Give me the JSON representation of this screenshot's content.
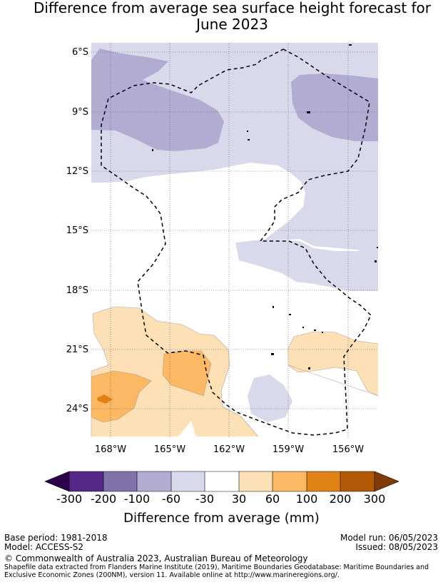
{
  "title": {
    "line1": "Difference from average sea surface height forecast for",
    "line2": "June 2023"
  },
  "map": {
    "lat_labels": [
      "6°S",
      "9°S",
      "12°S",
      "15°S",
      "18°S",
      "21°S",
      "24°S"
    ],
    "lon_labels": [
      "168°W",
      "165°W",
      "162°W",
      "159°W",
      "156°W"
    ],
    "extent": {
      "lon_min": -169.0,
      "lon_max": -154.5,
      "lat_min": -25.4,
      "lat_max": -5.5
    },
    "gridlines": true,
    "boundary_style": "dashed black line (EEZ)"
  },
  "colorbar": {
    "ticks": [
      "-300",
      "-200",
      "-100",
      "-60",
      "-30",
      "30",
      "60",
      "100",
      "200",
      "300"
    ],
    "label": "Difference from average (mm)",
    "colors": {
      "below_-300": "#2d004b",
      "-300_-200": "#542788",
      "-200_-100": "#8073ac",
      "-100_-60": "#b2abd2",
      "-60_-30": "#d8daeb",
      "-30_30": "#ffffff",
      "30_60": "#fee0b6",
      "60_100": "#fdb863",
      "100_200": "#e08214",
      "200_300": "#b35806",
      "above_300": "#7f3b08"
    }
  },
  "footer": {
    "base_period": "Base period: 1981-2018",
    "model": "Model: ACCESS-S2",
    "model_run": "Model run: 06/05/2023",
    "issued": "Issued: 08/05/2023",
    "copyright": "© Commonwealth of Australia 2023, Australian Bureau of Meteorology",
    "shapefile_line1": "Shapefile data extracted from Flanders Marine Institute (2019), Maritime Boundaries Geodatabase: Maritime Boundaries and",
    "shapefile_line2": "Exclusive Economic Zones (200NM), version 11. Available online at http://www.marineregions.org/."
  }
}
